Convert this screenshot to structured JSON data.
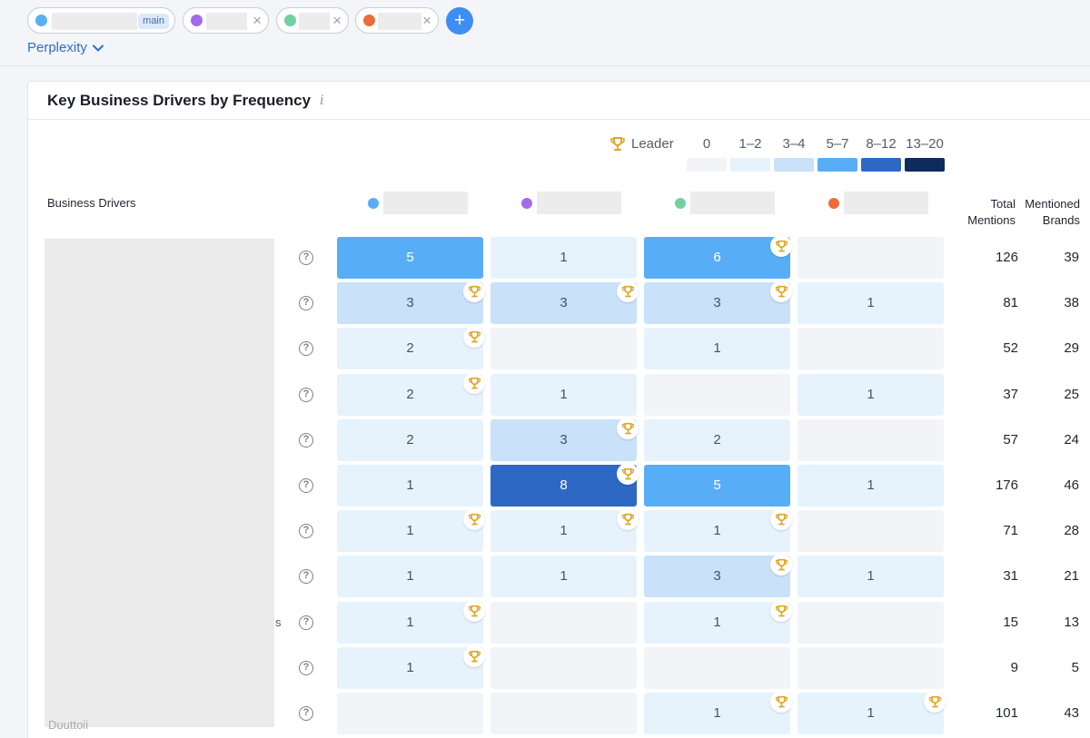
{
  "top": {
    "main_badge": "main",
    "add_label": "+",
    "close_glyph": "×",
    "engine": "Perplexity",
    "chips": [
      {
        "color": "#5aaef2"
      },
      {
        "color": "#a46be8"
      },
      {
        "color": "#6fd1a0"
      },
      {
        "color": "#ec6b3d"
      }
    ]
  },
  "card": {
    "title": "Key Business Drivers by Frequency",
    "info": "i"
  },
  "legend": {
    "leader": "Leader",
    "bins": [
      {
        "label": "0",
        "color": "#f3f4f8"
      },
      {
        "label": "1–2",
        "color": "#e6f3fd"
      },
      {
        "label": "3–4",
        "color": "#c9e1f9"
      },
      {
        "label": "5–7",
        "color": "#58aef6"
      },
      {
        "label": "8–12",
        "color": "#2d68c4"
      },
      {
        "label": "13–20",
        "color": "#0f2a5c"
      }
    ]
  },
  "table": {
    "drivers_header": "Business Drivers",
    "total_header": "Total Mentions",
    "brands_header": "Mentioned Brands",
    "help_glyph": "?",
    "fragments": [
      {
        "row": 8,
        "text": "s"
      },
      {
        "row": 10,
        "text": "Duuttoii"
      }
    ],
    "rows": [
      {
        "cells": [
          {
            "v": "5",
            "b": 3,
            "t": false
          },
          {
            "v": "1",
            "b": 1,
            "t": false
          },
          {
            "v": "6",
            "b": 3,
            "t": true
          },
          {
            "v": "",
            "b": 0,
            "t": false
          }
        ],
        "total": "126",
        "brands": "39"
      },
      {
        "cells": [
          {
            "v": "3",
            "b": 2,
            "t": true
          },
          {
            "v": "3",
            "b": 2,
            "t": true
          },
          {
            "v": "3",
            "b": 2,
            "t": true
          },
          {
            "v": "1",
            "b": 1,
            "t": false
          }
        ],
        "total": "81",
        "brands": "38"
      },
      {
        "cells": [
          {
            "v": "2",
            "b": 1,
            "t": true
          },
          {
            "v": "",
            "b": 0,
            "t": false
          },
          {
            "v": "1",
            "b": 1,
            "t": false
          },
          {
            "v": "",
            "b": 0,
            "t": false
          }
        ],
        "total": "52",
        "brands": "29"
      },
      {
        "cells": [
          {
            "v": "2",
            "b": 1,
            "t": true
          },
          {
            "v": "1",
            "b": 1,
            "t": false
          },
          {
            "v": "",
            "b": 0,
            "t": false
          },
          {
            "v": "1",
            "b": 1,
            "t": false
          }
        ],
        "total": "37",
        "brands": "25"
      },
      {
        "cells": [
          {
            "v": "2",
            "b": 1,
            "t": false
          },
          {
            "v": "3",
            "b": 2,
            "t": true
          },
          {
            "v": "2",
            "b": 1,
            "t": false
          },
          {
            "v": "",
            "b": 0,
            "t": false
          }
        ],
        "total": "57",
        "brands": "24"
      },
      {
        "cells": [
          {
            "v": "1",
            "b": 1,
            "t": false
          },
          {
            "v": "8",
            "b": 4,
            "t": true
          },
          {
            "v": "5",
            "b": 3,
            "t": false
          },
          {
            "v": "1",
            "b": 1,
            "t": false
          }
        ],
        "total": "176",
        "brands": "46"
      },
      {
        "cells": [
          {
            "v": "1",
            "b": 1,
            "t": true
          },
          {
            "v": "1",
            "b": 1,
            "t": true
          },
          {
            "v": "1",
            "b": 1,
            "t": true
          },
          {
            "v": "",
            "b": 0,
            "t": false
          }
        ],
        "total": "71",
        "brands": "28"
      },
      {
        "cells": [
          {
            "v": "1",
            "b": 1,
            "t": false
          },
          {
            "v": "1",
            "b": 1,
            "t": false
          },
          {
            "v": "3",
            "b": 2,
            "t": true
          },
          {
            "v": "1",
            "b": 1,
            "t": false
          }
        ],
        "total": "31",
        "brands": "21"
      },
      {
        "cells": [
          {
            "v": "1",
            "b": 1,
            "t": true
          },
          {
            "v": "",
            "b": 0,
            "t": false
          },
          {
            "v": "1",
            "b": 1,
            "t": true
          },
          {
            "v": "",
            "b": 0,
            "t": false
          }
        ],
        "total": "15",
        "brands": "13"
      },
      {
        "cells": [
          {
            "v": "1",
            "b": 1,
            "t": true
          },
          {
            "v": "",
            "b": 0,
            "t": false
          },
          {
            "v": "",
            "b": 0,
            "t": false
          },
          {
            "v": "",
            "b": 0,
            "t": false
          }
        ],
        "total": "9",
        "brands": "5"
      },
      {
        "cells": [
          {
            "v": "",
            "b": 0,
            "t": false
          },
          {
            "v": "",
            "b": 0,
            "t": false
          },
          {
            "v": "1",
            "b": 1,
            "t": true
          },
          {
            "v": "1",
            "b": 1,
            "t": true
          }
        ],
        "total": "101",
        "brands": "43"
      }
    ]
  },
  "colors": {
    "trophy": "#e0a526",
    "accent": "#3d8ef0"
  }
}
